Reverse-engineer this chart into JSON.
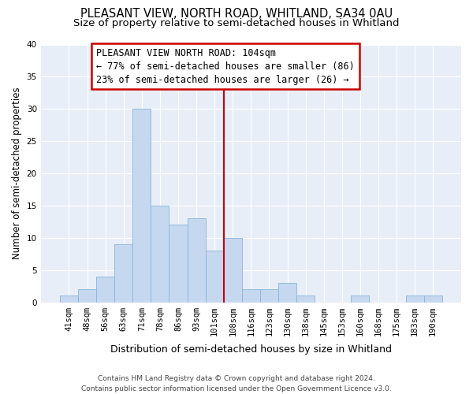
{
  "title": "PLEASANT VIEW, NORTH ROAD, WHITLAND, SA34 0AU",
  "subtitle": "Size of property relative to semi-detached houses in Whitland",
  "xlabel": "Distribution of semi-detached houses by size in Whitland",
  "ylabel": "Number of semi-detached properties",
  "categories": [
    "41sqm",
    "48sqm",
    "56sqm",
    "63sqm",
    "71sqm",
    "78sqm",
    "86sqm",
    "93sqm",
    "101sqm",
    "108sqm",
    "116sqm",
    "123sqm",
    "130sqm",
    "138sqm",
    "145sqm",
    "153sqm",
    "160sqm",
    "168sqm",
    "175sqm",
    "183sqm",
    "190sqm"
  ],
  "values": [
    1,
    2,
    4,
    9,
    30,
    15,
    12,
    13,
    8,
    10,
    2,
    2,
    3,
    1,
    0,
    0,
    1,
    0,
    0,
    1,
    1
  ],
  "bar_color": "#c5d8f0",
  "bar_edge_color": "#8ab4d8",
  "vline_x": 8.5,
  "vline_color": "#cc0000",
  "annotation_line1": "PLEASANT VIEW NORTH ROAD: 104sqm",
  "annotation_line2": "← 77% of semi-detached houses are smaller (86)",
  "annotation_line3": "23% of semi-detached houses are larger (26) →",
  "annotation_box_edge": "#cc0000",
  "ylim": [
    0,
    40
  ],
  "yticks": [
    0,
    5,
    10,
    15,
    20,
    25,
    30,
    35,
    40
  ],
  "footer": "Contains HM Land Registry data © Crown copyright and database right 2024.\nContains public sector information licensed under the Open Government Licence v3.0.",
  "bg_color": "#e8eef8",
  "title_fontsize": 10.5,
  "subtitle_fontsize": 9.5,
  "xlabel_fontsize": 9,
  "ylabel_fontsize": 8.5,
  "tick_fontsize": 7.5,
  "annot_fontsize": 8.5,
  "footer_fontsize": 6.5
}
